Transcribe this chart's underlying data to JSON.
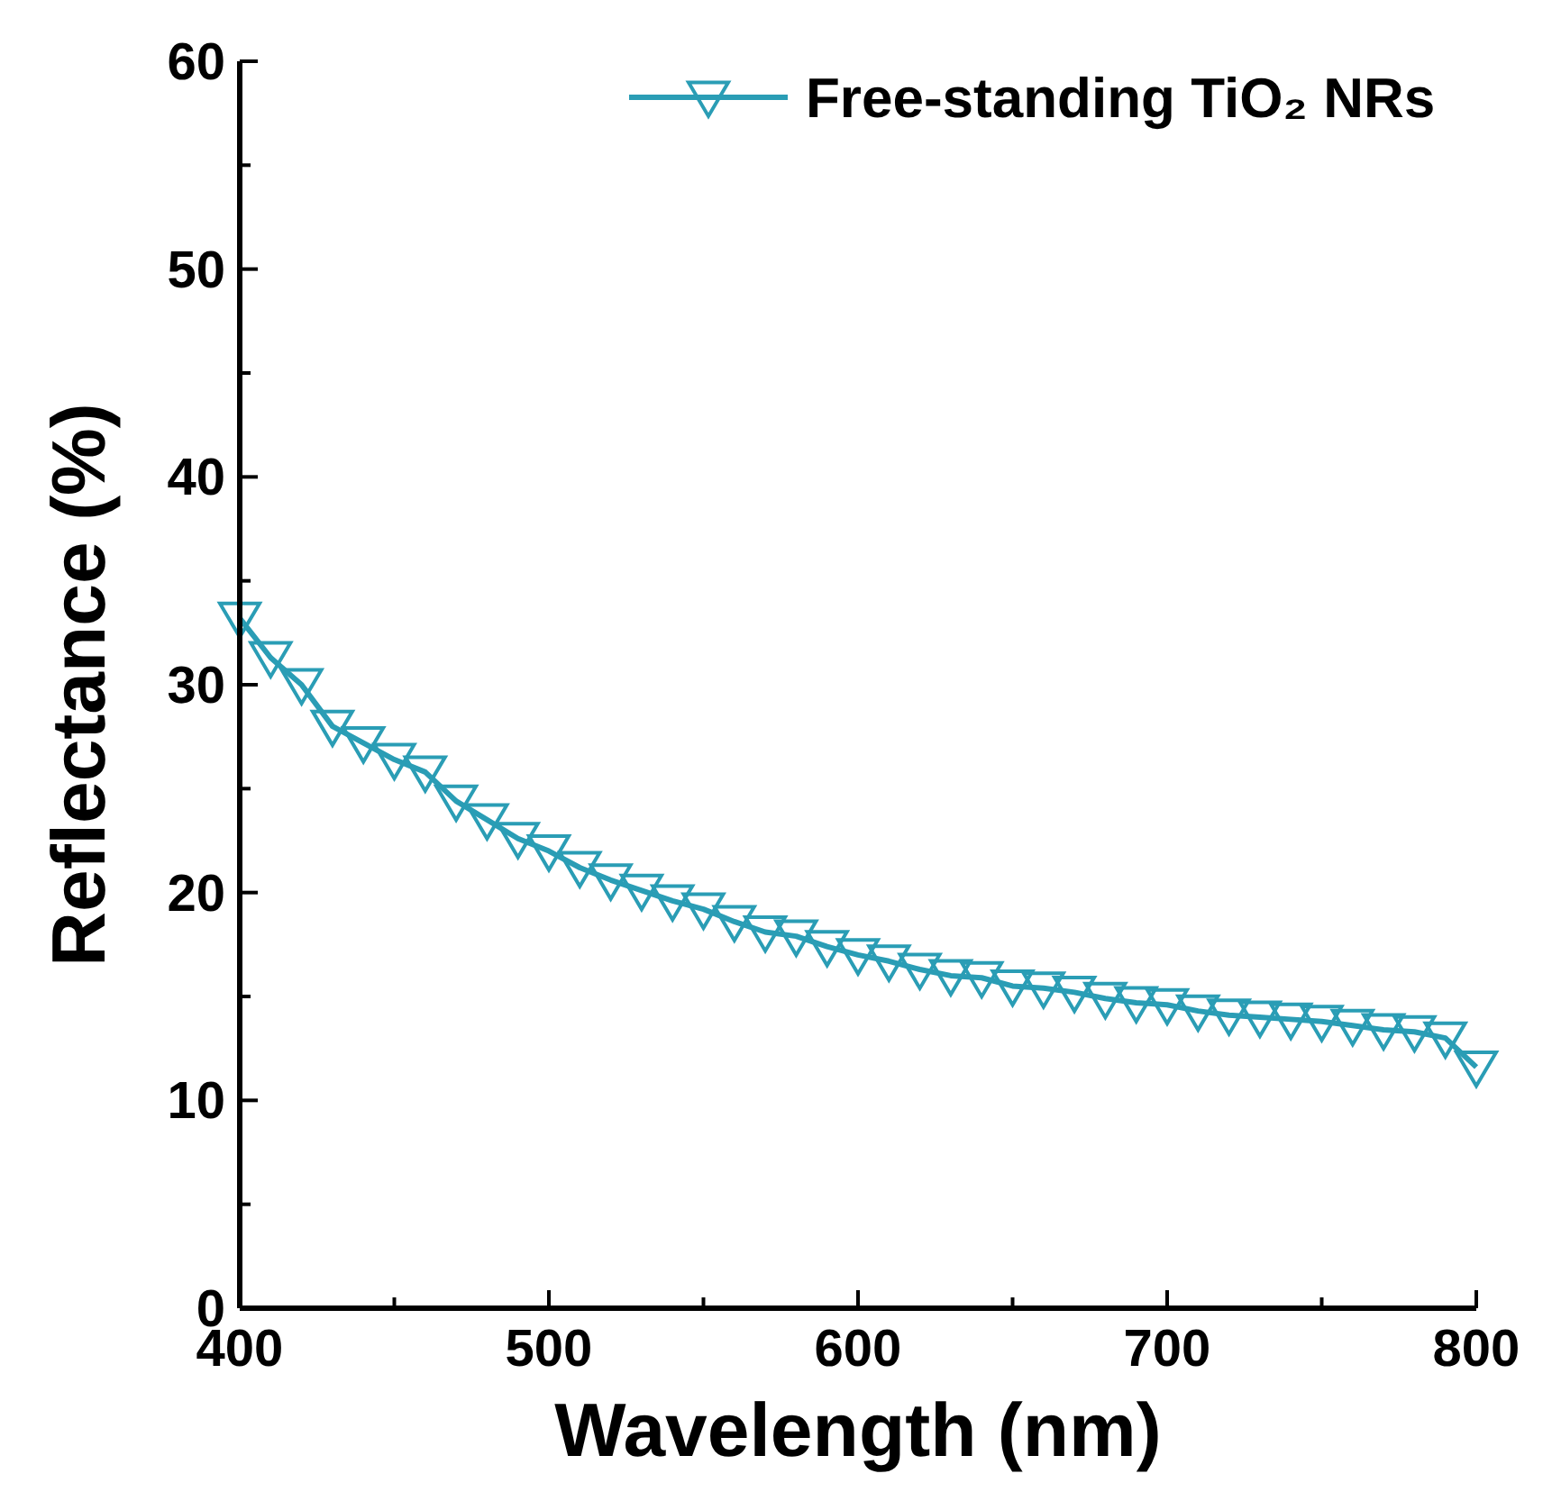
{
  "chart_data": {
    "type": "line",
    "xlabel": "Wavelength (nm)",
    "ylabel": "Reflectance (%)",
    "x": [
      400,
      410,
      420,
      430,
      440,
      450,
      460,
      470,
      480,
      490,
      500,
      510,
      520,
      530,
      540,
      550,
      560,
      570,
      580,
      590,
      600,
      610,
      620,
      630,
      640,
      650,
      660,
      670,
      680,
      690,
      700,
      710,
      720,
      730,
      740,
      750,
      760,
      770,
      780,
      790,
      800
    ],
    "series": [
      {
        "name": "Free-standing TiO₂ NRs",
        "color": "#2a9db5",
        "values": [
          33.2,
          31.3,
          30,
          28,
          27.2,
          26.4,
          25.8,
          24.4,
          23.5,
          22.6,
          22,
          21.2,
          20.6,
          20.1,
          19.6,
          19.2,
          18.6,
          18.1,
          17.9,
          17.4,
          17,
          16.7,
          16.3,
          16,
          15.9,
          15.5,
          15.4,
          15.2,
          14.9,
          14.7,
          14.6,
          14.3,
          14.1,
          14,
          13.9,
          13.8,
          13.6,
          13.4,
          13.3,
          13,
          11.6
        ]
      }
    ],
    "xlim": [
      400,
      800
    ],
    "xticks": [
      400,
      {
        "value": 450,
        "label": null
      },
      500,
      {
        "value": 550,
        "label": null
      },
      600,
      {
        "value": 650,
        "label": null
      },
      700,
      {
        "value": 750,
        "label": null
      },
      800
    ],
    "ylim": [
      0,
      60
    ],
    "yticks": [
      0,
      {
        "value": 5,
        "label": null
      },
      10,
      {
        "value": 15,
        "label": null
      },
      20,
      {
        "value": 25,
        "label": null
      },
      30,
      {
        "value": 35,
        "label": null
      },
      40,
      {
        "value": 45,
        "label": null
      },
      50,
      {
        "value": 55,
        "label": null
      },
      60
    ],
    "legend": "top right",
    "marker": "triangle",
    "line_style": "solid",
    "grid": false
  }
}
